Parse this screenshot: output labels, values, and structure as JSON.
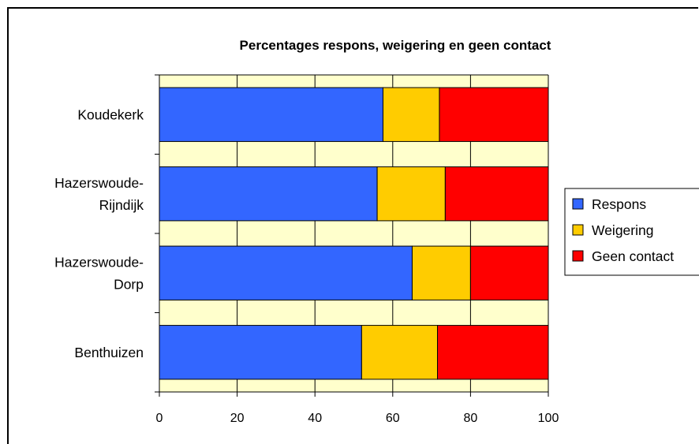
{
  "chart_data": {
    "type": "bar",
    "orientation": "horizontal",
    "stacked": true,
    "title": "Percentages respons, weigering en geen contact",
    "xlabel": "",
    "ylabel": "",
    "xlim": [
      0,
      100
    ],
    "xticks": [
      "0",
      "20",
      "40",
      "60",
      "80",
      "100"
    ],
    "grid": true,
    "legend_position": "right",
    "plot_background": "#FFFFCC",
    "categories": [
      [
        "Koudekerk"
      ],
      [
        "Hazerswoude-",
        "Rijndijk"
      ],
      [
        "Hazerswoude-",
        "Dorp"
      ],
      [
        "Benthuizen"
      ]
    ],
    "series": [
      {
        "name": "Respons",
        "color": "#3366FF",
        "values": [
          57.5,
          56,
          65,
          52
        ]
      },
      {
        "name": "Weigering",
        "color": "#FFCC00",
        "values": [
          14.5,
          17.5,
          15,
          19.5
        ]
      },
      {
        "name": "Geen contact",
        "color": "#FF0000",
        "values": [
          28,
          26.5,
          20,
          28.5
        ]
      }
    ]
  }
}
